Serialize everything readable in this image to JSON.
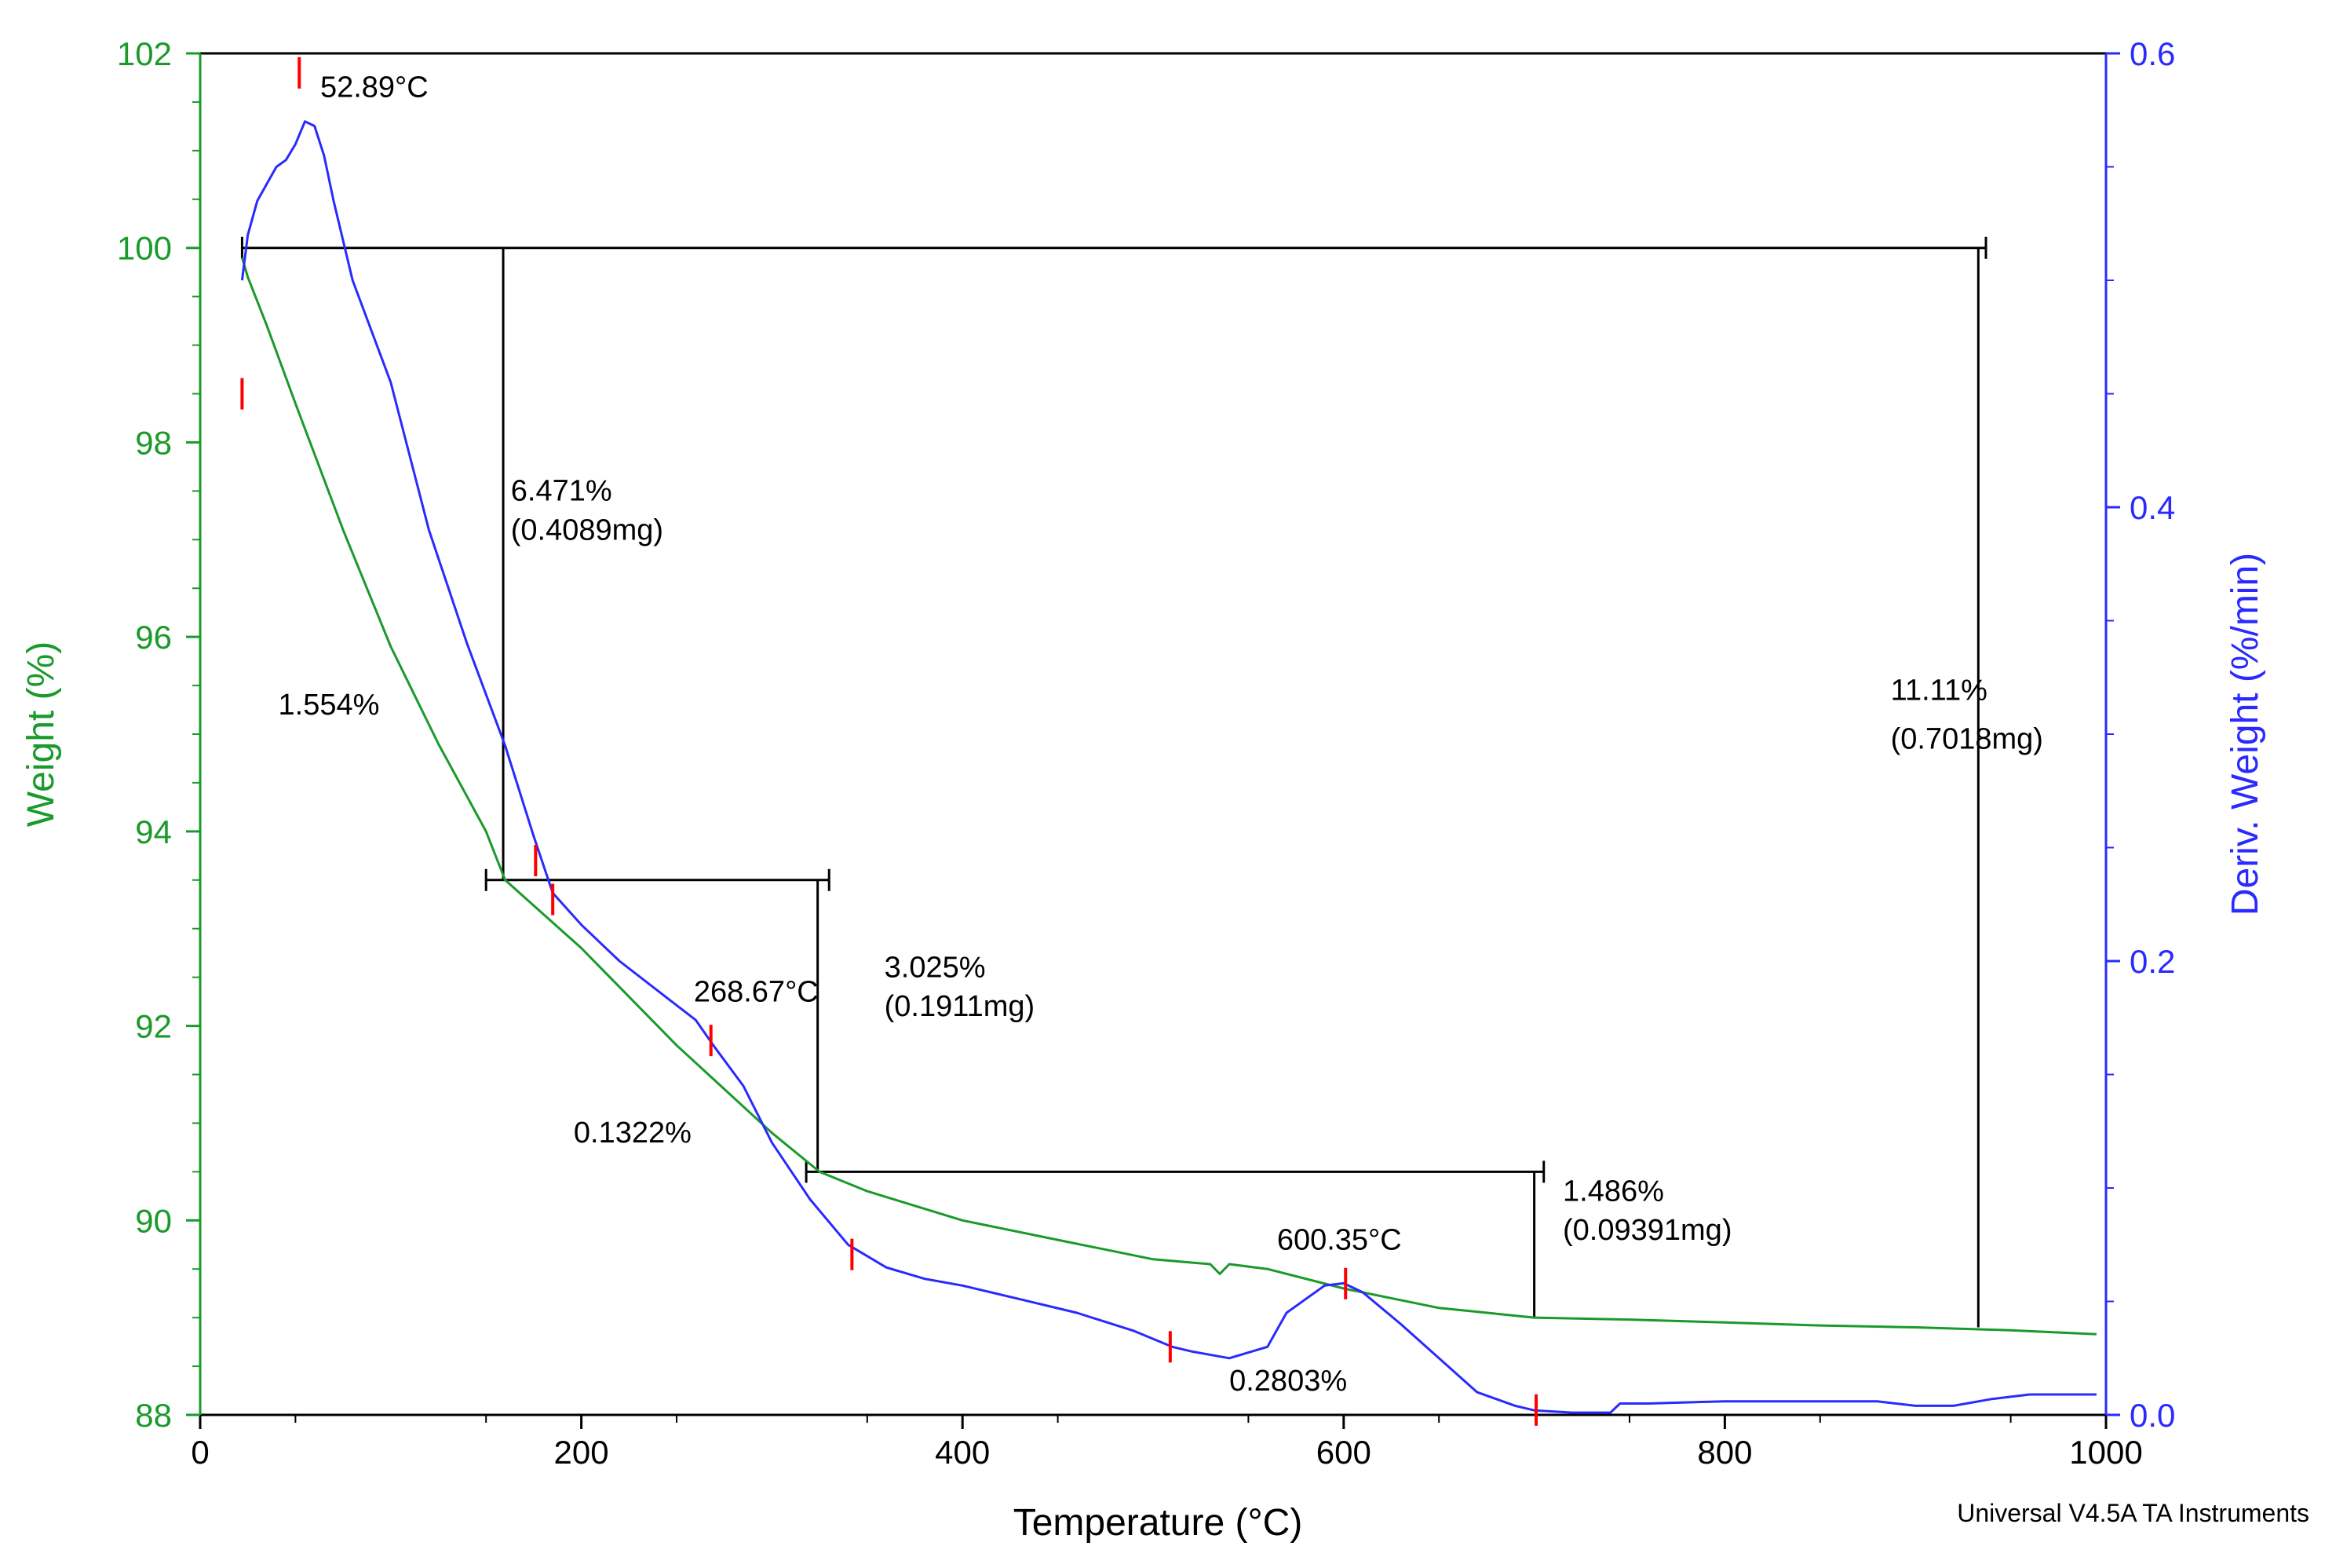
{
  "chart_data": {
    "type": "line",
    "xlabel": "Temperature (°C)",
    "ylabel": "Weight (%)",
    "y2label": "Deriv. Weight (%/min)",
    "xlim": [
      0,
      1000
    ],
    "ylim": [
      88,
      102
    ],
    "y2lim": [
      0,
      0.6
    ],
    "x_ticks": [
      0,
      200,
      400,
      600,
      800,
      1000
    ],
    "y_ticks": [
      88,
      90,
      92,
      94,
      96,
      98,
      100,
      102
    ],
    "y2_ticks": [
      0.0,
      0.2,
      0.4,
      0.6
    ],
    "y2_tick_labels": [
      "0.0",
      "0.2",
      "0.4",
      "0.6"
    ],
    "footer": "Universal V4.5A TA Instruments",
    "colors": {
      "weight": "#1a9a2a",
      "deriv": "#2a2aff",
      "steps": "#000000",
      "markers": "#ff0000"
    },
    "series": [
      {
        "axis": "left",
        "x": [
          22,
          25,
          35,
          50,
          75,
          100,
          125,
          150,
          160,
          200,
          250,
          300,
          325,
          350,
          400,
          450,
          500,
          530,
          535,
          540,
          560,
          600,
          650,
          700,
          750,
          800,
          850,
          900,
          950,
          995
        ],
        "y": [
          99.9,
          99.7,
          99.2,
          98.4,
          97.1,
          95.9,
          94.9,
          94.0,
          93.5,
          92.8,
          91.8,
          90.9,
          90.5,
          90.3,
          90.0,
          89.8,
          89.6,
          89.55,
          89.45,
          89.55,
          89.5,
          89.3,
          89.1,
          89.0,
          88.98,
          88.95,
          88.92,
          88.9,
          88.87,
          88.83
        ]
      },
      {
        "axis": "right",
        "x": [
          22,
          25,
          30,
          40,
          45,
          50,
          55,
          60,
          65,
          70,
          80,
          100,
          120,
          140,
          160,
          175,
          185,
          200,
          220,
          240,
          260,
          270,
          285,
          300,
          320,
          340,
          360,
          380,
          400,
          430,
          460,
          490,
          510,
          520,
          540,
          560,
          570,
          590,
          600,
          610,
          630,
          650,
          670,
          690,
          700,
          720,
          740,
          745,
          760,
          800,
          850,
          880,
          900,
          920,
          940,
          960,
          995
        ],
        "y": [
          0.5,
          0.52,
          0.535,
          0.55,
          0.553,
          0.56,
          0.57,
          0.568,
          0.555,
          0.535,
          0.5,
          0.455,
          0.39,
          0.34,
          0.295,
          0.255,
          0.23,
          0.216,
          0.2,
          0.187,
          0.174,
          0.162,
          0.145,
          0.12,
          0.095,
          0.075,
          0.065,
          0.06,
          0.057,
          0.051,
          0.045,
          0.037,
          0.03,
          0.028,
          0.025,
          0.03,
          0.045,
          0.057,
          0.058,
          0.054,
          0.04,
          0.025,
          0.01,
          0.004,
          0.002,
          0.001,
          0.001,
          0.005,
          0.005,
          0.006,
          0.006,
          0.006,
          0.004,
          0.004,
          0.007,
          0.009,
          0.009
        ]
      }
    ],
    "step_lines": [
      [
        [
          22,
          100
        ],
        [
          937,
          100
        ]
      ],
      [
        [
          159,
          100
        ],
        [
          159,
          93.5
        ]
      ],
      [
        [
          150,
          93.5
        ],
        [
          330,
          93.5
        ]
      ],
      [
        [
          324,
          93.5
        ],
        [
          324,
          90.5
        ]
      ],
      [
        [
          318,
          90.5
        ],
        [
          705,
          90.5
        ]
      ],
      [
        [
          700,
          90.5
        ],
        [
          700,
          89.0
        ]
      ],
      [
        [
          933,
          100
        ],
        [
          933,
          88.9
        ]
      ]
    ],
    "annotations": [
      {
        "text": "52.89°C",
        "x": 63,
        "y": 101.55
      },
      {
        "text": "6.471%",
        "x": 163,
        "y": 97.4
      },
      {
        "text": "(0.4089mg)",
        "x": 163,
        "y": 97.0
      },
      {
        "text": "1.554%",
        "x": 41,
        "y": 95.2
      },
      {
        "text": "11.11%",
        "x": 887,
        "y": 95.35
      },
      {
        "text": "(0.7018mg)",
        "x": 887,
        "y": 94.85
      },
      {
        "text": "268.67°C",
        "x": 259,
        "y": 92.25
      },
      {
        "text": "3.025%",
        "x": 359,
        "y": 92.5
      },
      {
        "text": "(0.1911mg)",
        "x": 359,
        "y": 92.1
      },
      {
        "text": "0.1322%",
        "x": 196,
        "y": 90.8
      },
      {
        "text": "1.486%",
        "x": 715,
        "y": 90.2
      },
      {
        "text": "(0.09391mg)",
        "x": 715,
        "y": 89.8
      },
      {
        "text": "600.35°C",
        "x": 565,
        "y": 89.7
      },
      {
        "text": "0.2803%",
        "x": 540,
        "y": 88.25
      }
    ],
    "markers": [
      {
        "x": 52,
        "y": 101.8
      },
      {
        "x": 22,
        "y": 98.5
      },
      {
        "x": 176,
        "y": 93.7
      },
      {
        "x": 185,
        "y": 93.3
      },
      {
        "x": 268,
        "y": 91.85
      },
      {
        "x": 342,
        "y": 89.65
      },
      {
        "x": 509,
        "y": 88.7
      },
      {
        "x": 601,
        "y": 89.35
      },
      {
        "x": 701,
        "y": 88.05
      }
    ]
  }
}
